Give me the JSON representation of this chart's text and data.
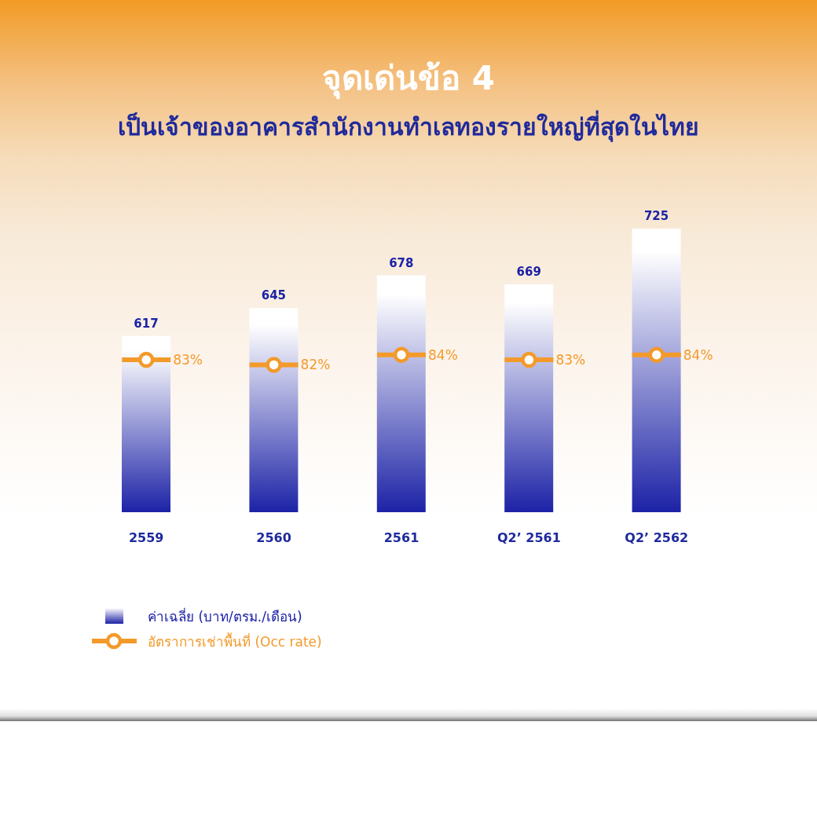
{
  "chart_data": {
    "type": "bar",
    "title": "จุดเด่นข้อ 4",
    "subtitle": "เป็นเจ้าของอาคารสำนักงานทำเลทองรายใหญ่ที่สุดในไทย",
    "categories": [
      "2559",
      "2560",
      "2561",
      "Q2’ 2561",
      "Q2’ 2562"
    ],
    "series": [
      {
        "name": "ค่าเฉลี่ย (บาท/ตรม./เดือน)",
        "color": "#1c22a6",
        "values": [
          617,
          645,
          678,
          669,
          725
        ],
        "value_labels": [
          "617",
          "645",
          "678",
          "669",
          "725"
        ]
      },
      {
        "name": "อัตราการเช่าพื้นที่ (Occ rate)",
        "type": "scatter",
        "axis": "y2",
        "color": "#f39a2b",
        "marker": "circle",
        "values": [
          83,
          82,
          84,
          83,
          84
        ],
        "value_labels": [
          "83%",
          "82%",
          "84%",
          "83%",
          "84%"
        ]
      }
    ],
    "ylim": [
      440,
      725
    ],
    "tick_labels": "x",
    "legend": "bottom left"
  }
}
